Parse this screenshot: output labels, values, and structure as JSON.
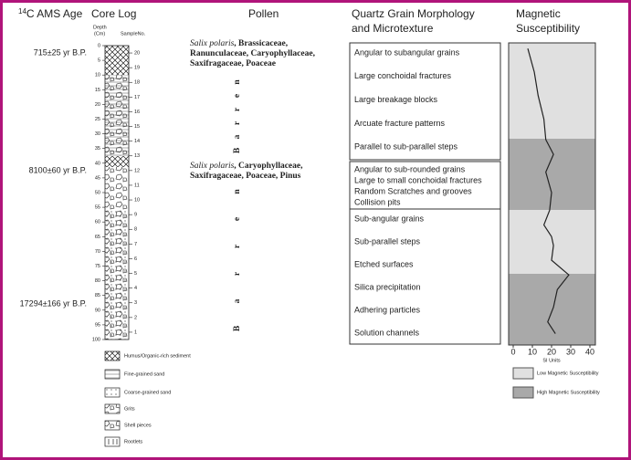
{
  "age": {
    "header": {
      "sup": "14",
      "text": "C AMS Age"
    },
    "labels": [
      "715±25 yr B.P.",
      "8100±60 yr B.P.",
      "17294±166 yr B.P."
    ]
  },
  "core": {
    "header": "Core Log",
    "depth_label": [
      "Depth",
      "(Cm)"
    ],
    "sample_label": "SampleNo.",
    "depths": [
      0,
      5,
      10,
      15,
      20,
      25,
      30,
      35,
      40,
      45,
      50,
      55,
      60,
      65,
      70,
      75,
      80,
      85,
      90,
      95,
      100
    ],
    "samples": [
      20,
      19,
      18,
      17,
      16,
      15,
      14,
      13,
      12,
      11,
      10,
      9,
      8,
      7,
      6,
      5,
      4,
      3,
      2,
      1
    ],
    "legend": [
      "Humus/Organic-rich sediment",
      "Fine-grained sand",
      "Coarse-grained sand",
      "Grits",
      "Shell pieces",
      "Rootlets"
    ]
  },
  "pollen": {
    "header": "Pollen",
    "groups": [
      [
        [
          "Salix polaris",
          ", Brassicaceae,"
        ],
        [
          "Ranunculaceae, Caryophyllaceae,"
        ],
        [
          "Saxifragaceae, Poaceae"
        ]
      ],
      [
        [
          "Salix polaris",
          ", Caryophyllaceae,"
        ],
        [
          "Saxifragaceae, Poaceae, Pinus"
        ]
      ]
    ],
    "barren": [
      "Barren",
      "Barren"
    ]
  },
  "quartz": {
    "header": [
      "Quartz Grain Morphology",
      "and Microtexture"
    ],
    "boxes": [
      [
        "Angular to subangular grains",
        "Large conchoidal fractures",
        "Large breakage blocks",
        "Arcuate fracture patterns",
        "Parallel to sub-parallel steps"
      ],
      [
        "Angular to sub-rounded grains",
        "Large to small conchoidal fractures",
        "Random Scratches and grooves",
        "Collision pits"
      ],
      [
        "Sub-angular grains",
        "Sub-parallel steps",
        "Etched surfaces",
        "Silica precipitation",
        "Adhering particles",
        "Solution channels"
      ]
    ]
  },
  "magnetic": {
    "header": [
      "Magnetic",
      "Susceptibility"
    ],
    "xlabel": "SI Units",
    "xlim": [
      0,
      40
    ],
    "xticks": [
      0,
      10,
      20,
      30,
      40
    ],
    "depth": [
      1,
      9,
      17,
      25,
      32,
      37,
      43,
      50,
      56,
      61,
      65,
      68,
      73,
      78,
      83,
      89,
      94,
      98
    ],
    "values": [
      7.6,
      11,
      13,
      16,
      17,
      21,
      17,
      20,
      19,
      16,
      20,
      21,
      20,
      29,
      23,
      21,
      18,
      22
    ],
    "color": "#222",
    "legend": [
      "Low Magnetic Susceptibility",
      "High Magnetic Susceptibility"
    ]
  }
}
